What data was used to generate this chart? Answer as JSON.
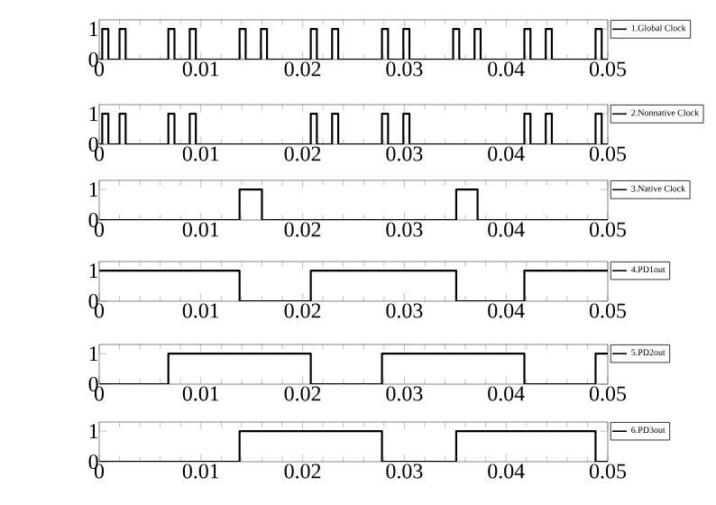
{
  "chart_data": [
    {
      "type": "step",
      "x": [
        0,
        0.0003,
        0.0009,
        0.002,
        0.0026,
        0.0068,
        0.0074,
        0.0089,
        0.0095,
        0.0138,
        0.0144,
        0.0159,
        0.0165,
        0.0208,
        0.0214,
        0.0229,
        0.0235,
        0.0278,
        0.0284,
        0.0299,
        0.0305,
        0.0348,
        0.0354,
        0.0369,
        0.0375,
        0.0418,
        0.0424,
        0.0439,
        0.0445,
        0.0488,
        0.0494,
        0.05
      ],
      "series": [
        {
          "name": "1.Global Clock",
          "color": "#000000",
          "values": [
            0,
            1,
            0,
            1,
            0,
            1,
            0,
            1,
            0,
            1,
            0,
            1,
            0,
            1,
            0,
            1,
            0,
            1,
            0,
            1,
            0,
            1,
            0,
            1,
            0,
            1,
            0,
            1,
            0,
            1,
            0,
            0
          ]
        }
      ],
      "xlim": [
        0,
        0.05
      ],
      "ylim": [
        0,
        1.3
      ],
      "xticks": [
        0,
        0.01,
        0.02,
        0.03,
        0.04,
        0.05
      ],
      "yticks": [
        0,
        1
      ],
      "legend": "right"
    },
    {
      "type": "step",
      "x": [
        0,
        0.0003,
        0.0009,
        0.002,
        0.0026,
        0.0068,
        0.0074,
        0.0089,
        0.0095,
        0.0208,
        0.0214,
        0.0229,
        0.0235,
        0.0278,
        0.0284,
        0.0299,
        0.0305,
        0.0418,
        0.0424,
        0.0439,
        0.0445,
        0.0488,
        0.0494,
        0.05
      ],
      "series": [
        {
          "name": "2.Nonnative Clock",
          "color": "#000000",
          "values": [
            0,
            1,
            0,
            1,
            0,
            1,
            0,
            1,
            0,
            1,
            0,
            1,
            0,
            1,
            0,
            1,
            0,
            1,
            0,
            1,
            0,
            1,
            0,
            0
          ]
        }
      ],
      "xlim": [
        0,
        0.05
      ],
      "ylim": [
        0,
        1.3
      ],
      "xticks": [
        0,
        0.01,
        0.02,
        0.03,
        0.04,
        0.05
      ],
      "yticks": [
        0,
        1
      ],
      "legend": "right"
    },
    {
      "type": "step",
      "x": [
        0,
        0.0138,
        0.016,
        0.0351,
        0.0372,
        0.05
      ],
      "series": [
        {
          "name": "3.Native Clock",
          "color": "#000000",
          "values": [
            0,
            1,
            0,
            1,
            0,
            0
          ]
        }
      ],
      "xlim": [
        0,
        0.05
      ],
      "ylim": [
        0,
        1.3
      ],
      "xticks": [
        0,
        0.01,
        0.02,
        0.03,
        0.04,
        0.05
      ],
      "yticks": [
        0,
        1
      ],
      "legend": "right"
    },
    {
      "type": "step",
      "x": [
        0,
        0.0138,
        0.0208,
        0.0351,
        0.0418,
        0.05
      ],
      "series": [
        {
          "name": "4.PD1out",
          "color": "#000000",
          "values": [
            1,
            0,
            1,
            0,
            1,
            1
          ]
        }
      ],
      "xlim": [
        0,
        0.05
      ],
      "ylim": [
        0,
        1.3
      ],
      "xticks": [
        0,
        0.01,
        0.02,
        0.03,
        0.04,
        0.05
      ],
      "yticks": [
        0,
        1
      ],
      "legend": "right"
    },
    {
      "type": "step",
      "x": [
        0,
        0.0068,
        0.0208,
        0.0278,
        0.0418,
        0.0488,
        0.05
      ],
      "series": [
        {
          "name": "5.PD2out",
          "color": "#000000",
          "values": [
            0,
            1,
            0,
            1,
            0,
            1,
            1
          ]
        }
      ],
      "xlim": [
        0,
        0.05
      ],
      "ylim": [
        0,
        1.3
      ],
      "xticks": [
        0,
        0.01,
        0.02,
        0.03,
        0.04,
        0.05
      ],
      "yticks": [
        0,
        1
      ],
      "legend": "right"
    },
    {
      "type": "step",
      "x": [
        0,
        0.0138,
        0.0278,
        0.0351,
        0.0488,
        0.05
      ],
      "series": [
        {
          "name": "6.PD3out",
          "color": "#000000",
          "values": [
            0,
            1,
            0,
            1,
            0,
            0
          ]
        }
      ],
      "xlim": [
        0,
        0.05
      ],
      "ylim": [
        0,
        1.3
      ],
      "xticks": [
        0,
        0.01,
        0.02,
        0.03,
        0.04,
        0.05
      ],
      "yticks": [
        0,
        1
      ],
      "legend": "right"
    }
  ]
}
